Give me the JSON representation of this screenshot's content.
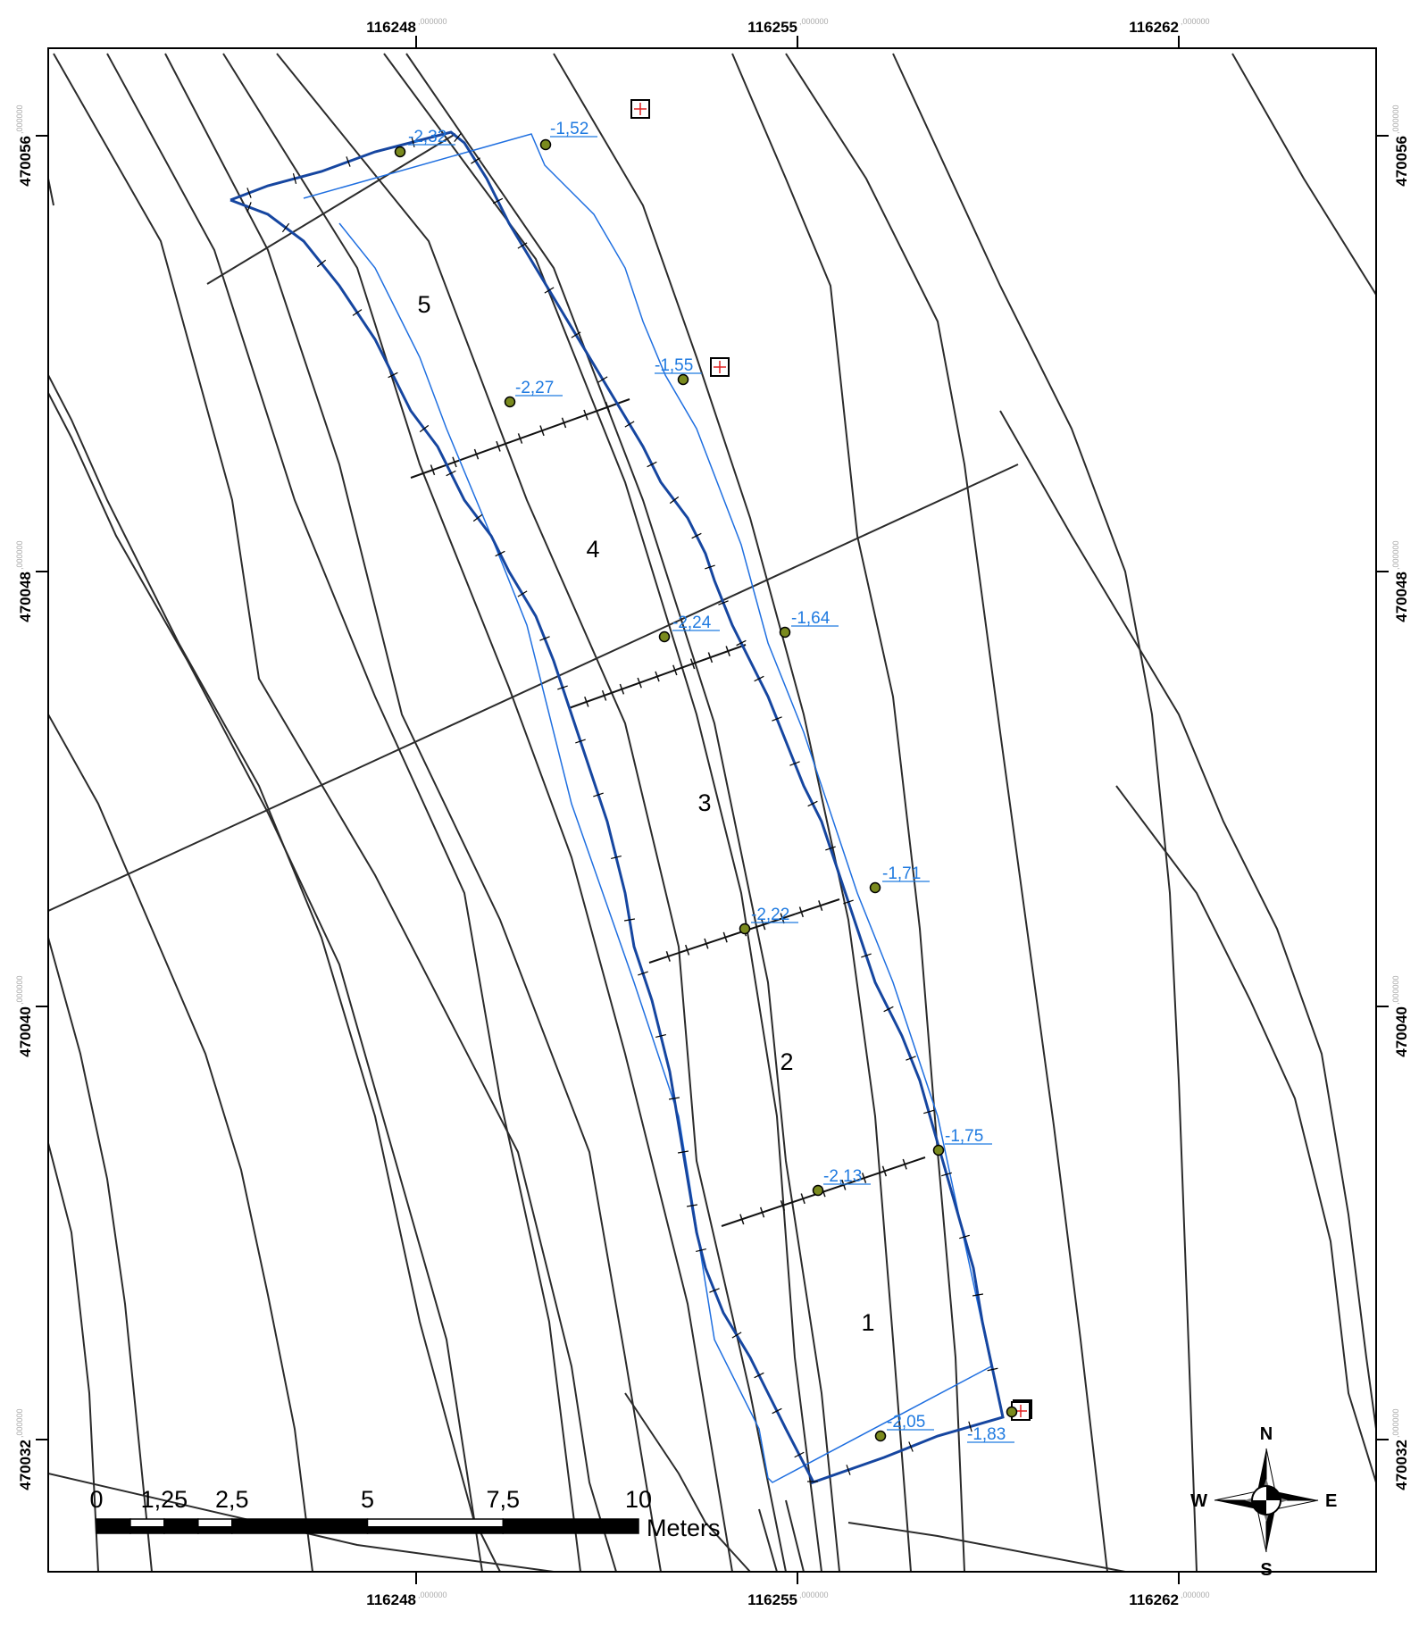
{
  "map": {
    "x_ticks": [
      {
        "value": "116248",
        "suffix": ",000000"
      },
      {
        "value": "116255",
        "suffix": ",000000"
      },
      {
        "value": "116262",
        "suffix": ",000000"
      }
    ],
    "y_ticks": [
      {
        "value": "470056",
        "suffix": ",000000"
      },
      {
        "value": "470048",
        "suffix": ",000000"
      },
      {
        "value": "470040",
        "suffix": ",000000"
      },
      {
        "value": "470032",
        "suffix": ",000000"
      }
    ],
    "colors": {
      "frame": "#000000",
      "contour": "#2b2b2b",
      "excavation_outline": "#1646a0",
      "plan_outline": "#1f6fe0",
      "depth_label": "#1f7ae0",
      "point_fill": "#7a8a1e",
      "benchmark_cross": "#e02020"
    },
    "sectors": [
      "1",
      "2",
      "3",
      "4",
      "5"
    ],
    "depth_points": [
      "-2,32",
      "-1,52",
      "-2,27",
      "-1,55",
      "-2,24",
      "-1,64",
      "-2,22",
      "-1,71",
      "-1,75",
      "-2,13",
      "-2,05",
      "-1,83"
    ],
    "benchmarks": 4
  },
  "scale_bar": {
    "labels": [
      "0",
      "1,25",
      "2,5",
      "5",
      "7,5",
      "10"
    ],
    "unit": "Meters"
  },
  "north_arrow": {
    "n": "N",
    "s": "S",
    "e": "E",
    "w": "W",
    "icon": "compass-rose-icon"
  }
}
